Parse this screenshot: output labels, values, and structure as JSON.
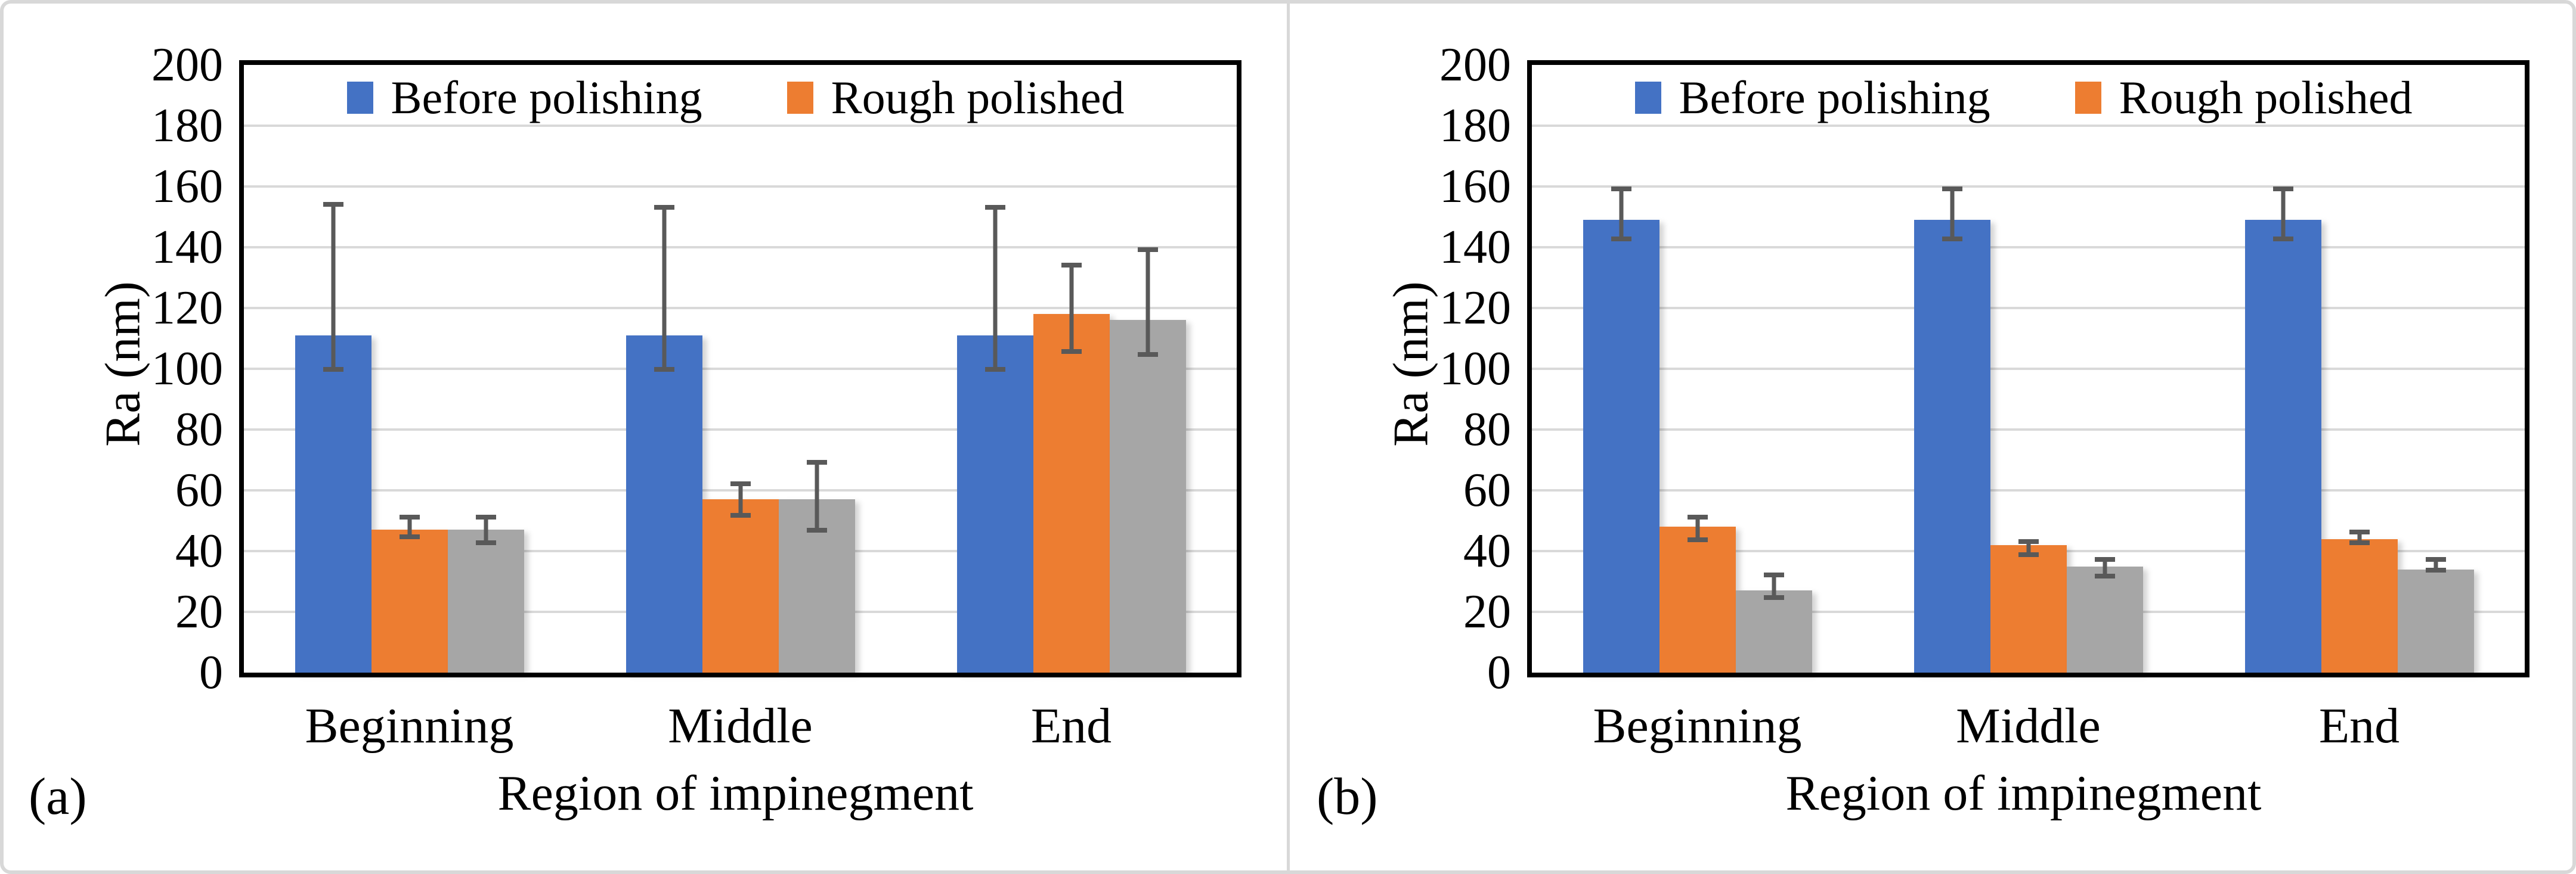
{
  "figure": {
    "background": "#ffffff",
    "border_color": "#d8d8d8",
    "gridline_color": "#d9d9d9",
    "axis_color": "#000000",
    "error_bar_color": "#595959"
  },
  "chart_data": [
    {
      "type": "bar",
      "corner_label": "(a)",
      "xlabel": "Region of impinegment",
      "ylabel": "Ra (nm)",
      "ylim": [
        0,
        200
      ],
      "y_ticks": [
        0,
        20,
        40,
        60,
        80,
        100,
        120,
        140,
        160,
        180,
        200
      ],
      "grid": true,
      "legend_position": "top-center-inside",
      "categories": [
        "Beginning",
        "Middle",
        "End"
      ],
      "series": [
        {
          "name": "Before polishing",
          "color": "#4472C4",
          "in_legend": true,
          "values": [
            111,
            111,
            111
          ],
          "err_low": [
            99,
            99,
            99
          ],
          "err_high": [
            155,
            154,
            154
          ]
        },
        {
          "name": "Rough polished",
          "color": "#ED7D31",
          "in_legend": true,
          "values": [
            47,
            57,
            118
          ],
          "err_low": [
            44,
            51,
            105
          ],
          "err_high": [
            52,
            63,
            135
          ]
        },
        {
          "name": "",
          "color": "#A6A6A6",
          "in_legend": false,
          "values": [
            47,
            57,
            116
          ],
          "err_low": [
            42,
            46,
            104
          ],
          "err_high": [
            52,
            70,
            140
          ]
        }
      ]
    },
    {
      "type": "bar",
      "corner_label": "(b)",
      "xlabel": "Region of impinegment",
      "ylabel": "Ra (nm)",
      "ylim": [
        0,
        200
      ],
      "y_ticks": [
        0,
        20,
        40,
        60,
        80,
        100,
        120,
        140,
        160,
        180,
        200
      ],
      "grid": true,
      "legend_position": "top-center-inside",
      "categories": [
        "Beginning",
        "Middle",
        "End"
      ],
      "series": [
        {
          "name": "Before polishing",
          "color": "#4472C4",
          "in_legend": true,
          "values": [
            149,
            149,
            149
          ],
          "err_low": [
            142,
            142,
            142
          ],
          "err_high": [
            160,
            160,
            160
          ]
        },
        {
          "name": "Rough polished",
          "color": "#ED7D31",
          "in_legend": true,
          "values": [
            48,
            42,
            44
          ],
          "err_low": [
            43,
            38,
            42
          ],
          "err_high": [
            52,
            44,
            47
          ]
        },
        {
          "name": "",
          "color": "#A6A6A6",
          "in_legend": false,
          "values": [
            27,
            35,
            34
          ],
          "err_low": [
            24,
            31,
            33
          ],
          "err_high": [
            33,
            38,
            38
          ]
        }
      ]
    }
  ]
}
